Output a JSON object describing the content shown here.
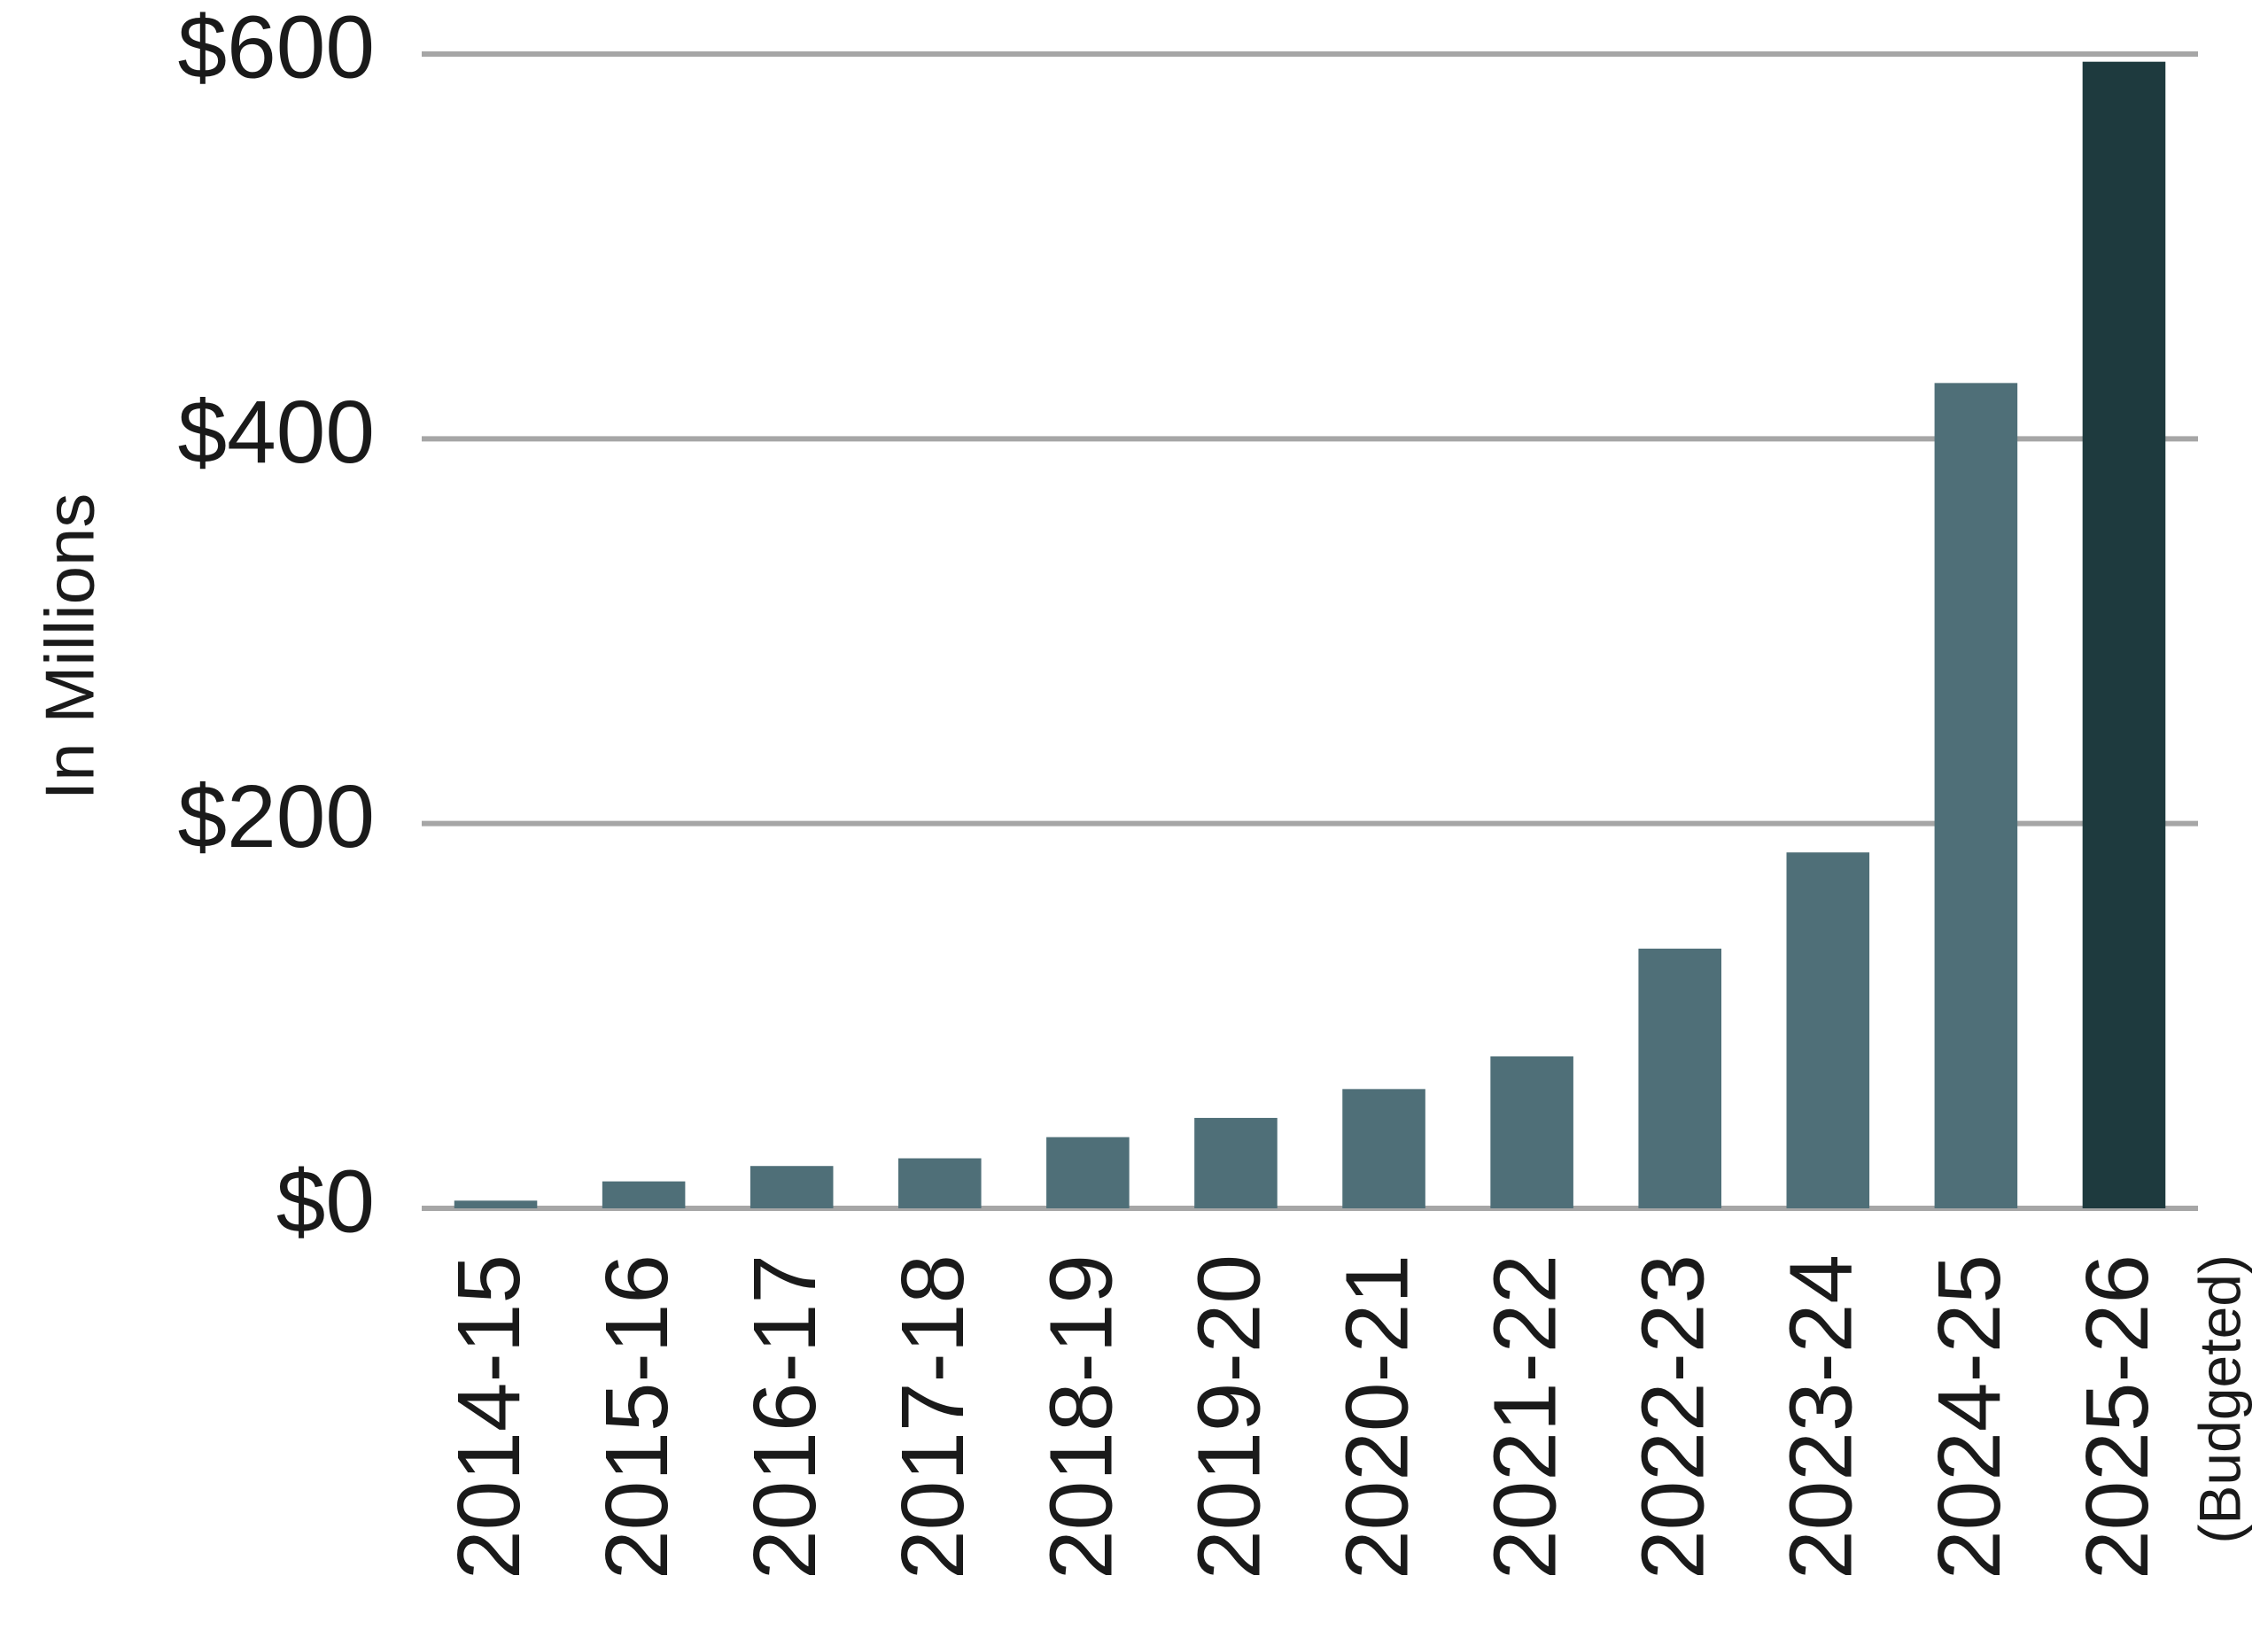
{
  "chart_data": {
    "type": "bar",
    "y_axis_label": "In Millions",
    "categories": [
      "2014-15",
      "2015-16",
      "2016-17",
      "2017-18",
      "2018-19",
      "2019-20",
      "2020-21",
      "2021-22",
      "2022-23",
      "2023-24",
      "2024-25",
      "2025-26"
    ],
    "category_note": "(Budgeted)",
    "values": [
      4,
      14,
      22,
      26,
      37,
      47,
      62,
      79,
      135,
      185,
      429,
      596
    ],
    "colors": [
      "#4f6f78",
      "#4f6f78",
      "#4f6f78",
      "#4f6f78",
      "#4f6f78",
      "#4f6f78",
      "#4f6f78",
      "#4f6f78",
      "#4f6f78",
      "#4f6f78",
      "#4f6f78",
      "#1e3a3e"
    ],
    "ylim": [
      0,
      600
    ],
    "yticks": [
      {
        "value": 0,
        "label": "$0"
      },
      {
        "value": 200,
        "label": "$200"
      },
      {
        "value": 400,
        "label": "$400"
      },
      {
        "value": 600,
        "label": "$600"
      }
    ],
    "grid": true
  }
}
